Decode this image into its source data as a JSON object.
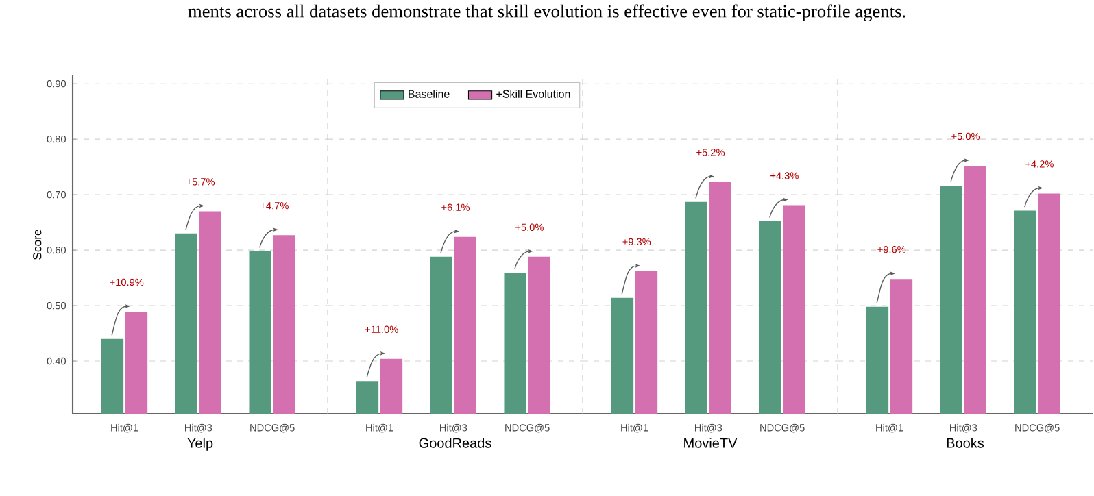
{
  "chart_data": [
    {
      "type": "bar",
      "ylabel": "Score",
      "xlabel": "Yelp",
      "categories": [
        "Hit@1",
        "Hit@3",
        "NDCG@5"
      ],
      "series": [
        {
          "color": "#559a7e",
          "values": [
            0.44,
            0.63,
            0.598
          ]
        },
        {
          "color": "#d46fb0",
          "values": [
            0.489,
            0.67,
            0.627
          ]
        }
      ],
      "ylim": [
        0.305,
        0.915
      ],
      "yticks": [
        {
          "value": 0.4,
          "label": "0.40"
        },
        {
          "value": 0.5,
          "label": "0.50"
        },
        {
          "value": 0.6,
          "label": "0.60"
        },
        {
          "value": 0.7,
          "label": "0.70"
        },
        {
          "value": 0.8,
          "label": "0.80"
        },
        {
          "value": 0.9,
          "label": "0.90"
        }
      ],
      "grid": "y",
      "annotations": [
        "ments across all datasets demonstrate that skill evolution is effective even for static-profile agents.",
        {
          "text": "+10.9%",
          "x": "Hit@1",
          "y": 0.489
        },
        {
          "text": "+5.7%",
          "x": "Hit@3",
          "y": 0.67
        },
        {
          "text": "+4.7%",
          "x": "NDCG@5",
          "y": 0.627
        }
      ]
    },
    {
      "type": "bar",
      "xlabel": "GoodReads",
      "categories": [
        "Hit@1",
        "Hit@3",
        "NDCG@5"
      ],
      "series": [
        {
          "name": "Baseline",
          "color": "#559a7e",
          "values": [
            0.364,
            0.588,
            0.559
          ]
        },
        {
          "name": "+Skill Evolution",
          "color": "#d46fb0",
          "values": [
            0.404,
            0.624,
            0.588
          ]
        }
      ],
      "ylim": [
        0.305,
        0.915
      ],
      "yticks": [
        0.4,
        0.5,
        0.6,
        0.7,
        0.8,
        0.9
      ],
      "grid": "y",
      "tick_labels": "x",
      "legend": "top right",
      "annotations": [
        {
          "text": "+11.0%",
          "x": "Hit@1",
          "y": 0.404
        },
        {
          "text": "+6.1%",
          "x": "Hit@3",
          "y": 0.624
        },
        {
          "text": "+5.0%",
          "x": "NDCG@5",
          "y": 0.588
        }
      ]
    },
    {
      "type": "bar",
      "xlabel": "MovieTV",
      "categories": [
        "Hit@1",
        "Hit@3",
        "NDCG@5"
      ],
      "series": [
        {
          "color": "#559a7e",
          "values": [
            0.514,
            0.687,
            0.652
          ]
        },
        {
          "color": "#d46fb0",
          "values": [
            0.562,
            0.723,
            0.681
          ]
        }
      ],
      "ylim": [
        0.305,
        0.915
      ],
      "yticks": [
        0.4,
        0.5,
        0.6,
        0.7,
        0.8,
        0.9
      ],
      "grid": "y",
      "tick_labels": "x",
      "annotations": [
        {
          "text": "+9.3%",
          "x": "Hit@1",
          "y": 0.562
        },
        {
          "text": "+5.2%",
          "x": "Hit@3",
          "y": 0.723
        },
        {
          "text": "+4.3%",
          "x": "NDCG@5",
          "y": 0.681
        }
      ]
    },
    {
      "type": "bar",
      "xlabel": "Books",
      "categories": [
        "Hit@1",
        "Hit@3",
        "NDCG@5"
      ],
      "series": [
        {
          "color": "#559a7e",
          "values": [
            0.498,
            0.716,
            0.671
          ]
        },
        {
          "color": "#d46fb0",
          "values": [
            0.548,
            0.752,
            0.702
          ]
        }
      ],
      "ylim": [
        0.305,
        0.915
      ],
      "yticks": [
        0.4,
        0.5,
        0.6,
        0.7,
        0.8,
        0.9
      ],
      "grid": "y",
      "tick_labels": "x",
      "annotations": [
        {
          "text": "+9.6%",
          "x": "Hit@1",
          "y": 0.548
        },
        {
          "text": "+5.0%",
          "x": "Hit@3",
          "y": 0.752
        },
        {
          "text": "+4.2%",
          "x": "NDCG@5",
          "y": 0.702
        }
      ]
    }
  ]
}
